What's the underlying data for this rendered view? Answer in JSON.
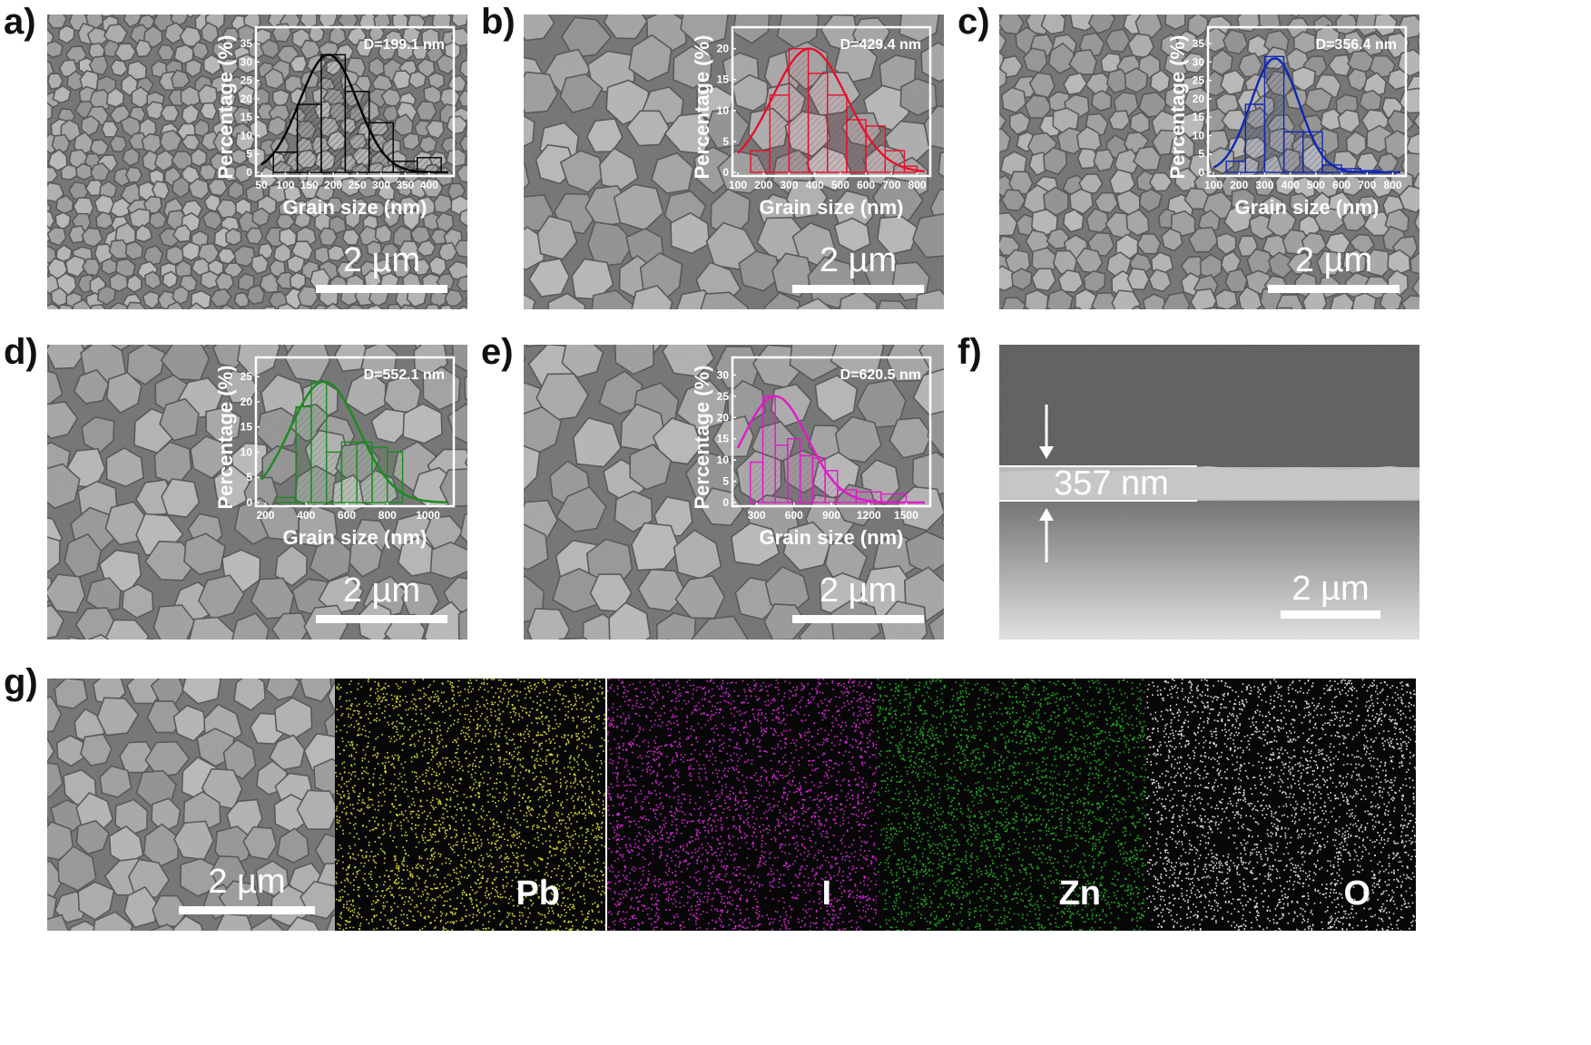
{
  "panels": [
    {
      "id": "a",
      "label": "a)",
      "diameter": "D=199.1 nm",
      "color": "#000000",
      "xticks": [
        "50",
        "100",
        "150",
        "200",
        "250",
        "300",
        "350",
        "400"
      ],
      "yticks": [
        "0",
        "5",
        "10",
        "15",
        "20",
        "25",
        "30",
        "35"
      ],
      "xlabel": "Grain size (nm)",
      "ylabel": "Percentage (%)",
      "scale": "2 µm",
      "chart_data": {
        "type": "bar",
        "xlim": [
          50,
          440
        ],
        "ylim": [
          0,
          37
        ],
        "bins": [
          {
            "x0": 75,
            "x1": 125,
            "v": 5.5
          },
          {
            "x0": 125,
            "x1": 175,
            "v": 18.5
          },
          {
            "x0": 175,
            "x1": 225,
            "v": 32
          },
          {
            "x0": 225,
            "x1": 275,
            "v": 22
          },
          {
            "x0": 275,
            "x1": 325,
            "v": 13.5
          },
          {
            "x0": 325,
            "x1": 375,
            "v": 3
          },
          {
            "x0": 375,
            "x1": 425,
            "v": 4
          }
        ],
        "fit": {
          "mu": 190,
          "sigma": 60,
          "amp": 32
        }
      }
    },
    {
      "id": "b",
      "label": "b)",
      "diameter": "D=429.4 nm",
      "color": "#e8102c",
      "xticks": [
        "100",
        "200",
        "300",
        "400",
        "500",
        "600",
        "700",
        "800"
      ],
      "yticks": [
        "0",
        "5",
        "10",
        "15",
        "20"
      ],
      "xlabel": "Grain size (nm)",
      "ylabel": "Percentage (%)",
      "scale": "2 µm",
      "chart_data": {
        "type": "bar",
        "xlim": [
          100,
          830
        ],
        "ylim": [
          0,
          22
        ],
        "bins": [
          {
            "x0": 150,
            "x1": 225,
            "v": 3.5
          },
          {
            "x0": 225,
            "x1": 300,
            "v": 12.5
          },
          {
            "x0": 300,
            "x1": 375,
            "v": 20
          },
          {
            "x0": 375,
            "x1": 450,
            "v": 16
          },
          {
            "x0": 450,
            "x1": 525,
            "v": 12.5
          },
          {
            "x0": 525,
            "x1": 600,
            "v": 8.5
          },
          {
            "x0": 600,
            "x1": 675,
            "v": 7.5
          },
          {
            "x0": 675,
            "x1": 750,
            "v": 3.5
          },
          {
            "x0": 750,
            "x1": 800,
            "v": 1
          }
        ],
        "fit": {
          "mu": 380,
          "sigma": 145,
          "amp": 20
        }
      }
    },
    {
      "id": "c",
      "label": "c)",
      "diameter": "D=356.4 nm",
      "color": "#1028b0",
      "xticks": [
        "100",
        "200",
        "300",
        "400",
        "500",
        "600",
        "700",
        "800"
      ],
      "yticks": [
        "0",
        "5",
        "10",
        "15",
        "20",
        "25",
        "30",
        "35"
      ],
      "xlabel": "Grain size (nm)",
      "ylabel": "Percentage (%)",
      "scale": "2 µm",
      "chart_data": {
        "type": "bar",
        "xlim": [
          100,
          830
        ],
        "ylim": [
          0,
          37
        ],
        "bins": [
          {
            "x0": 150,
            "x1": 225,
            "v": 3
          },
          {
            "x0": 225,
            "x1": 300,
            "v": 18.5
          },
          {
            "x0": 300,
            "x1": 375,
            "v": 31.5
          },
          {
            "x0": 375,
            "x1": 450,
            "v": 11
          },
          {
            "x0": 450,
            "x1": 525,
            "v": 11
          },
          {
            "x0": 525,
            "x1": 600,
            "v": 2
          },
          {
            "x0": 600,
            "x1": 675,
            "v": 1
          },
          {
            "x0": 675,
            "x1": 750,
            "v": 0.5
          }
        ],
        "fit": {
          "mu": 340,
          "sigma": 95,
          "amp": 31
        }
      }
    },
    {
      "id": "d",
      "label": "d)",
      "diameter": "D=552.1 nm",
      "color": "#1a8c20",
      "xticks": [
        "200",
        "400",
        "600",
        "800",
        "1000"
      ],
      "yticks": [
        "0",
        "5",
        "10",
        "15",
        "20",
        "25"
      ],
      "xlabel": "Grain size (nm)",
      "ylabel": "Percentage (%)",
      "scale": "2 µm",
      "chart_data": {
        "type": "bar",
        "xlim": [
          180,
          1100
        ],
        "ylim": [
          0,
          27
        ],
        "bins": [
          {
            "x0": 250,
            "x1": 350,
            "v": 1
          },
          {
            "x0": 350,
            "x1": 425,
            "v": 19
          },
          {
            "x0": 425,
            "x1": 500,
            "v": 24
          },
          {
            "x0": 500,
            "x1": 575,
            "v": 10
          },
          {
            "x0": 575,
            "x1": 650,
            "v": 12
          },
          {
            "x0": 650,
            "x1": 725,
            "v": 12
          },
          {
            "x0": 725,
            "x1": 800,
            "v": 11
          },
          {
            "x0": 800,
            "x1": 875,
            "v": 10
          }
        ],
        "fit": {
          "mu": 490,
          "sigma": 170,
          "amp": 24
        }
      }
    },
    {
      "id": "e",
      "label": "e)",
      "diameter": "D=620.5 nm",
      "color": "#e01ac8",
      "xticks": [
        "300",
        "600",
        "900",
        "1200",
        "1500"
      ],
      "yticks": [
        "0",
        "5",
        "10",
        "15",
        "20",
        "25",
        "30"
      ],
      "xlabel": "Grain size (nm)",
      "ylabel": "Percentage (%)",
      "scale": "2 µm",
      "chart_data": {
        "type": "bar",
        "xlim": [
          150,
          1650
        ],
        "ylim": [
          0,
          32
        ],
        "bins": [
          {
            "x0": 250,
            "x1": 350,
            "v": 9.5
          },
          {
            "x0": 350,
            "x1": 450,
            "v": 25
          },
          {
            "x0": 450,
            "x1": 550,
            "v": 13.5
          },
          {
            "x0": 550,
            "x1": 650,
            "v": 15
          },
          {
            "x0": 650,
            "x1": 750,
            "v": 11
          },
          {
            "x0": 750,
            "x1": 850,
            "v": 10.5
          },
          {
            "x0": 850,
            "x1": 950,
            "v": 7.5
          },
          {
            "x0": 950,
            "x1": 1100,
            "v": 3
          },
          {
            "x0": 1100,
            "x1": 1300,
            "v": 2.5
          },
          {
            "x0": 1300,
            "x1": 1500,
            "v": 2
          }
        ],
        "fit": {
          "mu": 450,
          "sigma": 260,
          "amp": 25
        }
      }
    }
  ],
  "panel_f": {
    "label": "f)",
    "thickness": "357 nm",
    "scale": "2 µm"
  },
  "panel_g": {
    "label": "g)",
    "scale": "2 µm",
    "maps": [
      {
        "element": "Pb",
        "color": "#d8d830"
      },
      {
        "element": "I",
        "color": "#d828d8"
      },
      {
        "element": "Zn",
        "color": "#20b020"
      },
      {
        "element": "O",
        "color": "#e0e0e0"
      }
    ]
  }
}
